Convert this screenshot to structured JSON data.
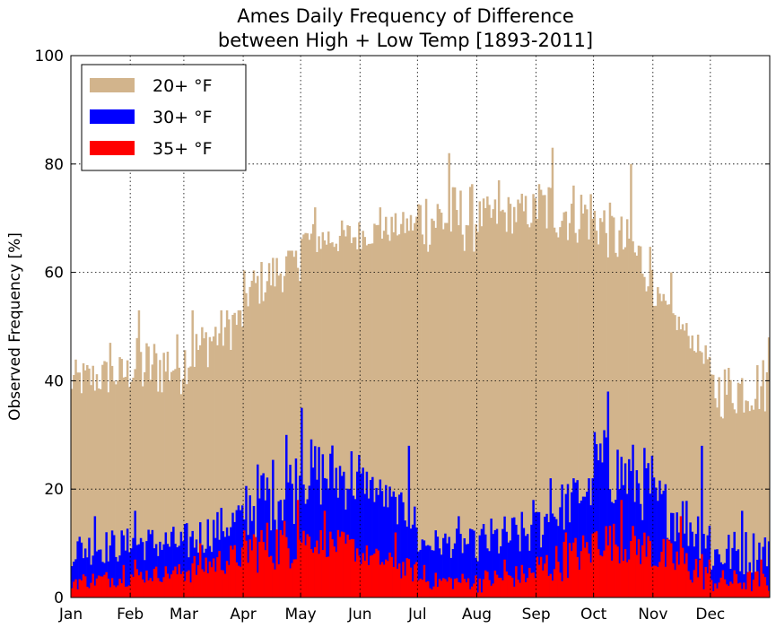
{
  "chart_data": {
    "type": "bar",
    "title": [
      "Ames Daily Frequency of Difference",
      "between High + Low Temp [1893-2011]"
    ],
    "xlabel": "",
    "ylabel": "Observed Frequency [%]",
    "ylim": [
      0,
      100
    ],
    "yticks": [
      "0",
      "20",
      "40",
      "60",
      "80",
      "100"
    ],
    "xtick_labels": [
      "Jan",
      "Feb",
      "Mar",
      "Apr",
      "May",
      "Jun",
      "Jul",
      "Aug",
      "Sep",
      "Oct",
      "Nov",
      "Dec"
    ],
    "days_per_month": [
      31,
      28,
      31,
      30,
      31,
      30,
      31,
      31,
      30,
      31,
      30,
      31
    ],
    "grid": true,
    "legend_position": "top-left",
    "series": [
      {
        "name": "20+ °F",
        "color": "#d2b48c",
        "monthly_mean": [
          40,
          42,
          44,
          56,
          66,
          67,
          70,
          70,
          72,
          70,
          56,
          38
        ],
        "peaks": [
          47,
          53,
          53,
          64,
          72,
          72,
          82,
          77,
          83,
          80,
          60,
          48
        ]
      },
      {
        "name": "30+ °F",
        "color": "#0000ff",
        "monthly_mean": [
          9,
          10,
          10,
          17,
          23,
          22,
          10,
          10,
          13,
          25,
          18,
          8
        ],
        "peaks": [
          15,
          16,
          17,
          30,
          35,
          28,
          15,
          18,
          22,
          38,
          28,
          16
        ]
      },
      {
        "name": "35+ °F",
        "color": "#ff0000",
        "monthly_mean": [
          3,
          4,
          5,
          9,
          11,
          8,
          3,
          3,
          5,
          11,
          8,
          3
        ],
        "peaks": [
          6,
          7,
          10,
          18,
          16,
          12,
          6,
          7,
          12,
          18,
          15,
          7
        ]
      }
    ]
  }
}
